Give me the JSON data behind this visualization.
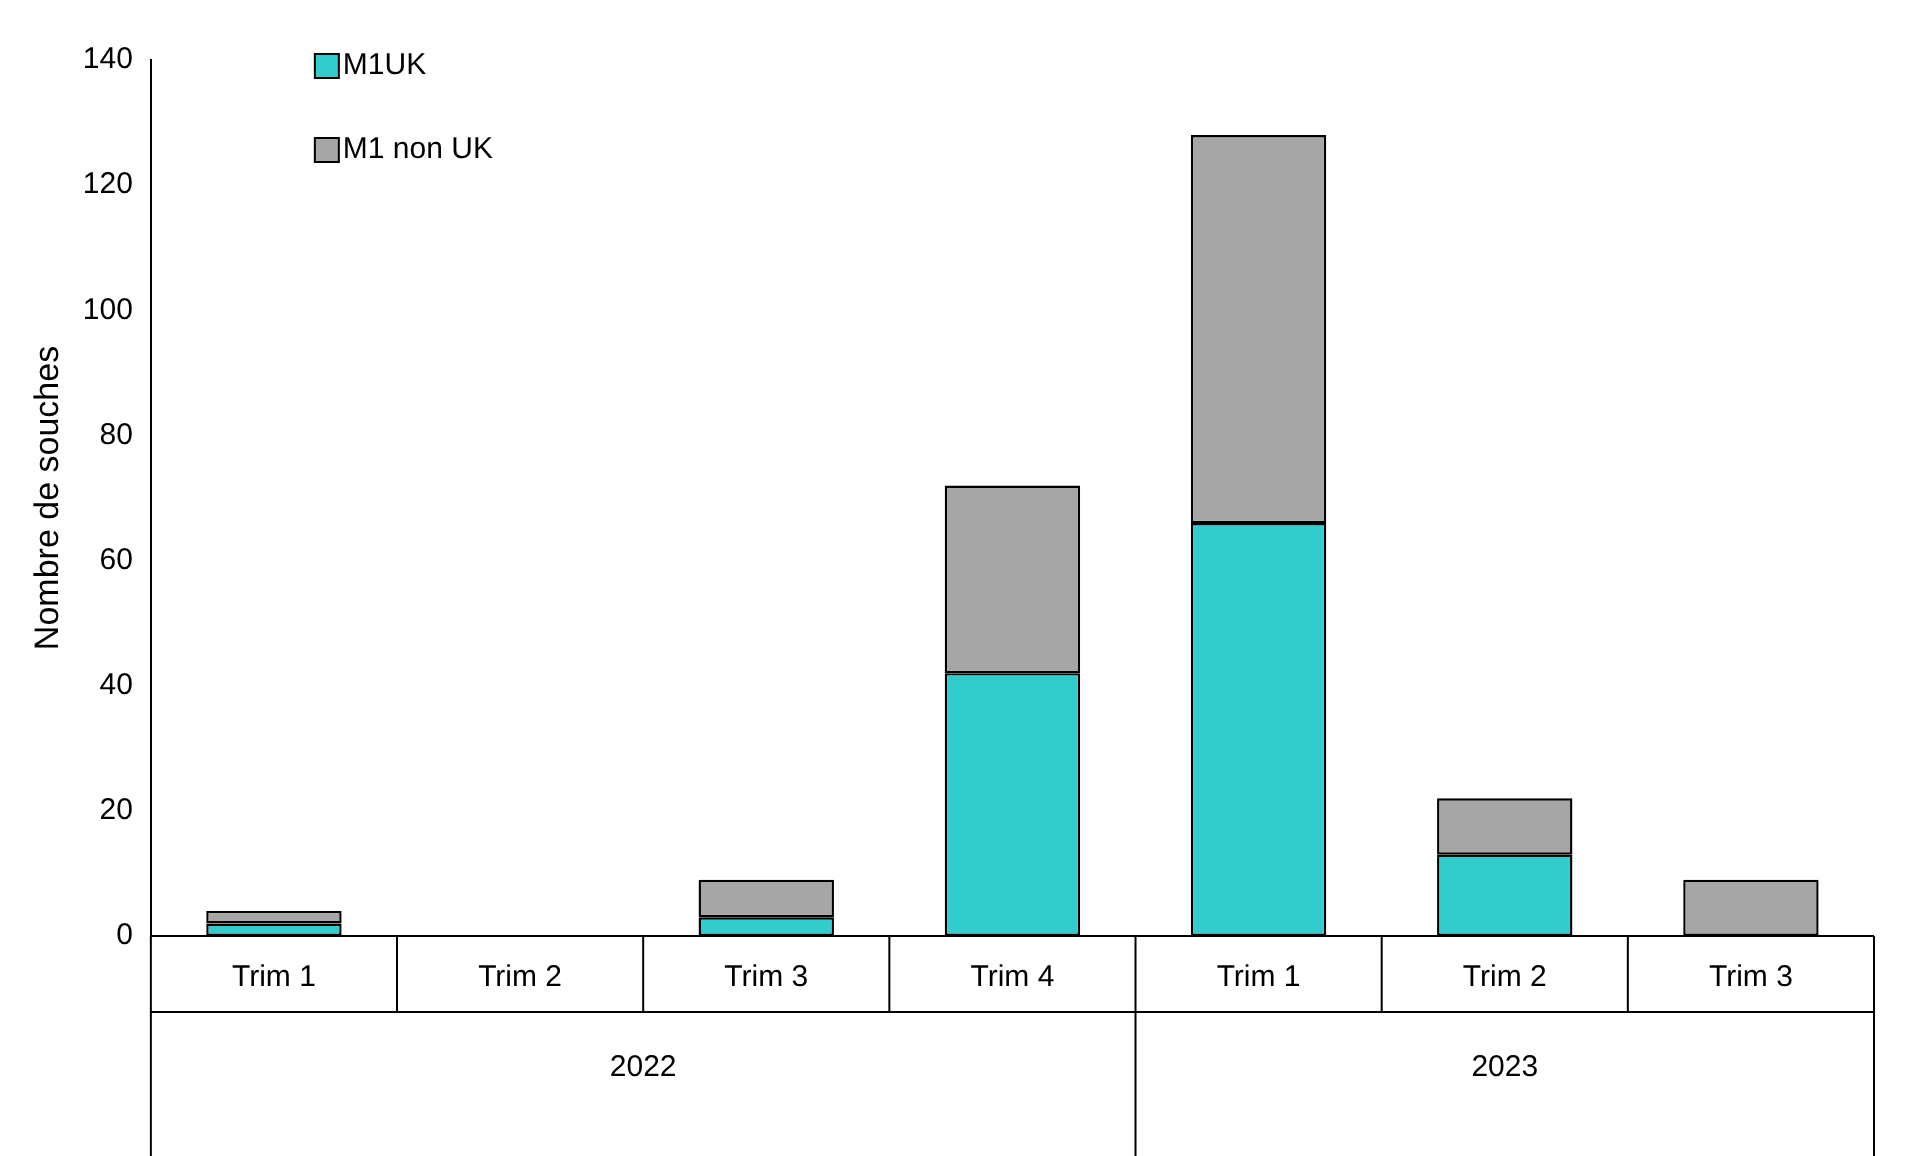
{
  "chart_data": {
    "type": "bar",
    "ylabel": "Nombre de souches",
    "categories": [
      "Trim 1",
      "Trim 2",
      "Trim 3",
      "Trim 4",
      "Trim 1",
      "Trim 2",
      "Trim 3"
    ],
    "series": [
      {
        "name": "M1UK",
        "color": "#33cccc",
        "values": [
          2,
          0,
          3,
          42,
          66,
          13,
          0
        ]
      },
      {
        "name": "M1 non UK",
        "color": "#a6a6a6",
        "values": [
          2,
          0,
          6,
          30,
          62,
          9,
          9
        ]
      }
    ],
    "stacked": true,
    "ylim": [
      0,
      140
    ],
    "yticks": [
      0,
      20,
      40,
      60,
      80,
      100,
      120,
      140
    ],
    "grid": false,
    "legend": "top left",
    "annotations": [
      "2022",
      "2023"
    ]
  }
}
